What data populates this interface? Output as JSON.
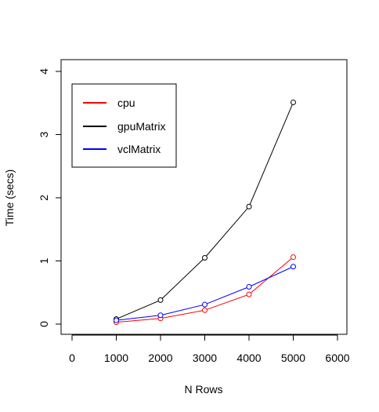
{
  "chart_data": {
    "type": "line",
    "title": "",
    "xlabel": "N Rows",
    "ylabel": "Time (secs)",
    "xlim": [
      0,
      6000
    ],
    "ylim": [
      0,
      4
    ],
    "x_ticks": [
      "0",
      "1000",
      "2000",
      "3000",
      "4000",
      "5000",
      "6000"
    ],
    "y_ticks": [
      "0",
      "1",
      "2",
      "3",
      "4"
    ],
    "x": [
      1000,
      2000,
      3000,
      4000,
      5000
    ],
    "series": [
      {
        "name": "cpu",
        "color": "#ff0000",
        "values": [
          0.03,
          0.09,
          0.22,
          0.47,
          1.06
        ]
      },
      {
        "name": "gpuMatrix",
        "color": "#000000",
        "values": [
          0.08,
          0.38,
          1.05,
          1.86,
          3.51
        ]
      },
      {
        "name": "vclMatrix",
        "color": "#0000ff",
        "values": [
          0.06,
          0.14,
          0.31,
          0.59,
          0.91
        ]
      }
    ],
    "legend_position": "top-left",
    "grid": false
  }
}
